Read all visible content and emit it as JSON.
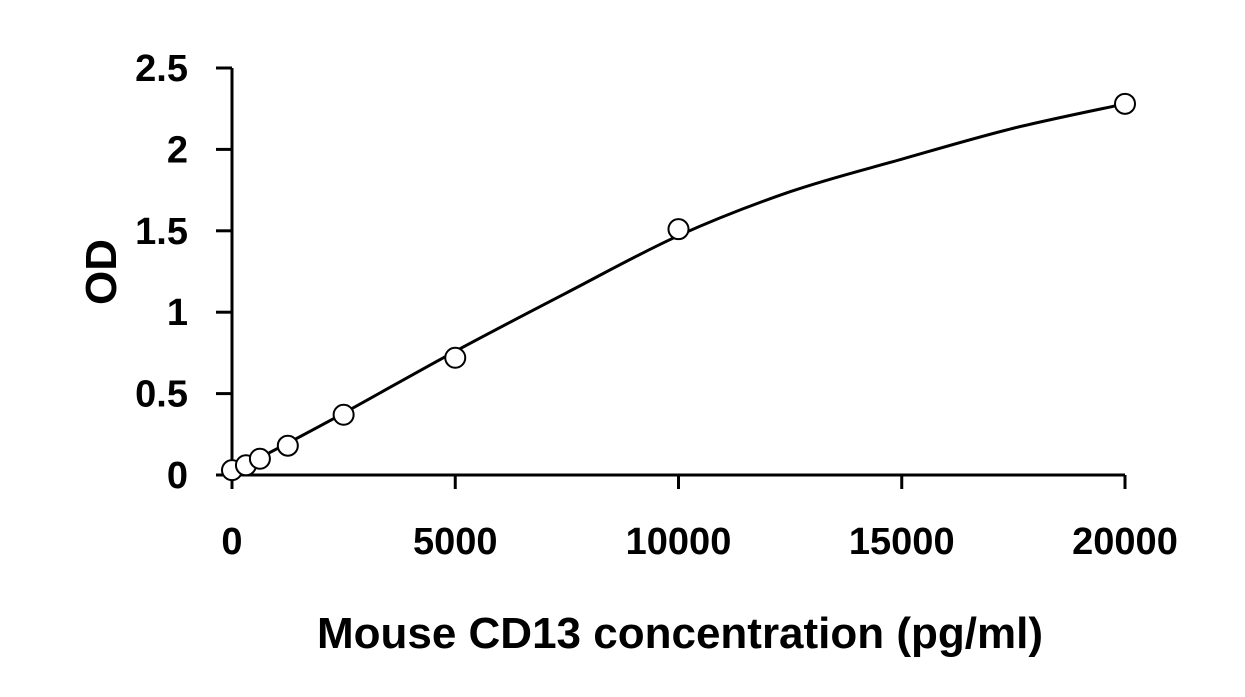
{
  "chart_data": {
    "type": "scatter",
    "title": "",
    "xlabel": "Mouse CD13 concentration (pg/ml)",
    "ylabel": "OD",
    "xlim": [
      0,
      20000
    ],
    "ylim": [
      0,
      2.5
    ],
    "x_ticks": [
      "0",
      "5000",
      "10000",
      "15000",
      "20000"
    ],
    "y_ticks": [
      "0",
      "0.5",
      "1",
      "1.5",
      "2",
      "2.5"
    ],
    "grid": false,
    "legend": "none",
    "series": [
      {
        "marker": "open-circle",
        "x": [
          0,
          312.5,
          625,
          1250,
          2500,
          5000,
          10000,
          20000
        ],
        "y": [
          0.03,
          0.06,
          0.1,
          0.18,
          0.37,
          0.72,
          1.51,
          2.28
        ]
      }
    ],
    "fit_curve": {
      "style": "solid-line",
      "x": [
        0,
        1000,
        2500,
        5000,
        7500,
        10000,
        12500,
        15000,
        17500,
        20000
      ],
      "y": [
        0.02,
        0.16,
        0.38,
        0.76,
        1.12,
        1.47,
        1.74,
        1.94,
        2.13,
        2.28
      ]
    },
    "colors": {
      "axis": "#000000",
      "marker_stroke": "#000000",
      "marker_fill": "#ffffff",
      "curve": "#000000"
    }
  }
}
